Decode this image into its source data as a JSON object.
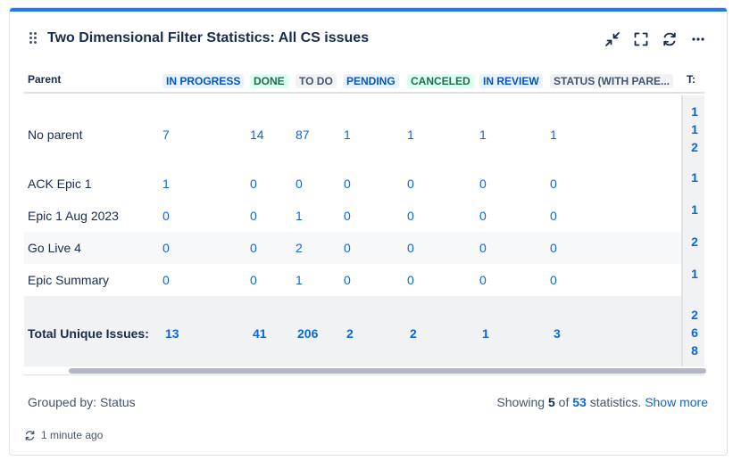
{
  "gadget": {
    "title": "Two Dimensional Filter Statistics: All CS issues",
    "icons": [
      "drag-handle-icon",
      "minimize-icon",
      "fullscreen-icon",
      "refresh-icon",
      "more-icon"
    ],
    "accent_color": "#1d7afc"
  },
  "table": {
    "row_header": "Parent",
    "columns": [
      {
        "label": "IN PROGRESS",
        "color": "blue"
      },
      {
        "label": "DONE",
        "color": "green"
      },
      {
        "label": "TO DO",
        "color": "grey"
      },
      {
        "label": "PENDING",
        "color": "blue"
      },
      {
        "label": "CANCELED",
        "color": "green"
      },
      {
        "label": "IN REVIEW",
        "color": "blue"
      },
      {
        "label": "STATUS (WITH PARE...",
        "color": "grey"
      }
    ],
    "total_col_header": "T:",
    "rows": [
      {
        "label": "No parent",
        "values": [
          "7",
          "14",
          "87",
          "1",
          "1",
          "1",
          "1"
        ],
        "total": "112"
      },
      {
        "label": "ACK Epic 1",
        "values": [
          "1",
          "0",
          "0",
          "0",
          "0",
          "0",
          "0"
        ],
        "total": "1"
      },
      {
        "label": "Epic 1 Aug 2023",
        "values": [
          "0",
          "0",
          "1",
          "0",
          "0",
          "0",
          "0"
        ],
        "total": "1"
      },
      {
        "label": "Go Live 4",
        "values": [
          "0",
          "0",
          "2",
          "0",
          "0",
          "0",
          "0"
        ],
        "total": "2"
      },
      {
        "label": "Epic Summary",
        "values": [
          "0",
          "0",
          "1",
          "0",
          "0",
          "0",
          "0"
        ],
        "total": "1"
      }
    ],
    "totals_row": {
      "label": "Total Unique Issues:",
      "values": [
        "13",
        "41",
        "206",
        "2",
        "2",
        "1",
        "3"
      ],
      "total": "268"
    }
  },
  "footer": {
    "grouped_by": "Grouped by: Status",
    "showing_prefix": "Showing",
    "shown_count": "5",
    "of_word": "of",
    "total_count": "53",
    "statistics_word": "statistics.",
    "show_more": "Show more"
  },
  "updated": "1 minute ago"
}
